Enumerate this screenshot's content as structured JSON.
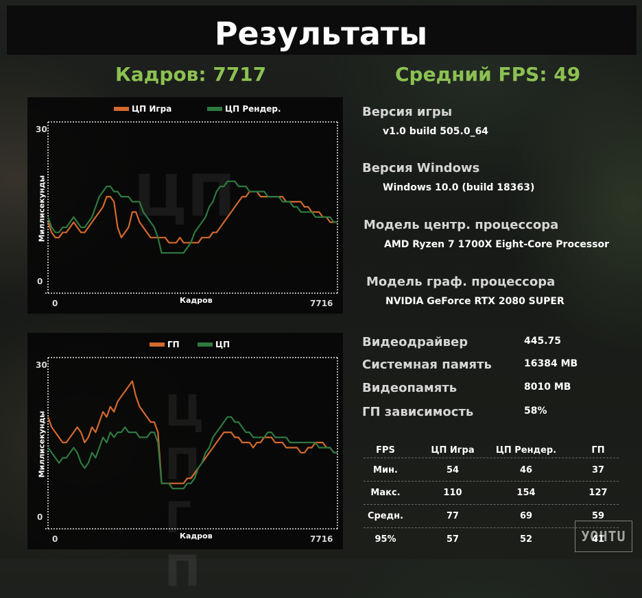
{
  "title": "Результаты",
  "frames_stat": "Кадров: 7717",
  "avg_fps_stat": "Средний FPS: 49",
  "colors": {
    "orange": "#d4692e",
    "green": "#2e7a40",
    "accent": "#8cc152"
  },
  "chart_data": [
    {
      "type": "line",
      "watermark": "ЦП",
      "xlabel": "Кадров",
      "ylabel": "Миллисекунды",
      "x_ticks": [
        "0",
        "7716"
      ],
      "y_ticks": [
        "0",
        "30"
      ],
      "ylim": [
        0,
        30
      ],
      "xlim": [
        0,
        7716
      ],
      "series": [
        {
          "name": "ЦП Игра",
          "color": "#d4692e",
          "values": [
            12,
            10,
            9,
            9,
            10,
            10,
            11,
            12,
            11,
            10,
            10,
            11,
            12,
            13,
            14,
            15,
            17,
            17,
            16,
            11,
            9,
            10,
            11,
            14,
            14,
            12,
            11,
            10,
            9,
            9,
            9,
            9,
            9,
            8,
            8,
            8,
            9,
            8,
            8,
            8,
            8,
            8,
            9,
            9,
            9,
            10,
            10,
            11,
            12,
            13,
            14,
            15,
            16,
            17,
            17,
            18,
            18,
            18,
            17,
            17,
            17,
            17,
            17,
            17,
            17,
            16,
            16,
            16,
            16,
            16,
            15,
            15,
            14,
            14,
            14,
            13,
            13,
            12,
            12,
            12
          ]
        },
        {
          "name": "ЦП Рендер.",
          "color": "#2e7a40",
          "values": [
            13,
            11,
            10,
            10,
            11,
            11,
            12,
            13,
            12,
            11,
            11,
            12,
            13,
            15,
            17,
            18,
            19,
            19,
            18,
            18,
            17,
            17,
            17,
            16,
            16,
            16,
            14,
            13,
            12,
            11,
            9,
            6,
            6,
            6,
            6,
            6,
            6,
            6,
            7,
            8,
            10,
            11,
            12,
            13,
            15,
            16,
            18,
            19,
            19,
            20,
            20,
            20,
            19,
            19,
            19,
            18,
            18,
            18,
            18,
            18,
            17,
            17,
            17,
            17,
            16,
            16,
            16,
            15,
            15,
            14,
            14,
            14,
            14,
            13,
            13,
            13,
            13,
            13,
            12,
            12
          ]
        }
      ]
    },
    {
      "type": "line",
      "watermark": "ЦП ГП",
      "xlabel": "Кадров",
      "ylabel": "Миллисекунды",
      "x_ticks": [
        "0",
        "7716"
      ],
      "y_ticks": [
        "0",
        "30"
      ],
      "ylim": [
        0,
        30
      ],
      "xlim": [
        0,
        7716
      ],
      "series": [
        {
          "name": "ГП",
          "color": "#d4692e",
          "values": [
            20,
            18,
            17,
            16,
            15,
            15,
            16,
            17,
            18,
            17,
            15,
            16,
            18,
            17,
            19,
            21,
            20,
            22,
            21,
            23,
            24,
            25,
            26,
            27,
            24,
            22,
            21,
            20,
            19,
            19,
            17,
            7,
            7,
            7,
            7,
            7,
            7,
            7,
            8,
            8,
            9,
            10,
            11,
            12,
            13,
            14,
            15,
            16,
            17,
            17,
            17,
            16,
            16,
            15,
            15,
            15,
            14,
            15,
            15,
            16,
            16,
            16,
            15,
            15,
            15,
            14,
            14,
            14,
            14,
            13,
            13,
            14,
            14,
            15,
            15,
            15,
            14,
            14,
            13,
            13
          ]
        },
        {
          "name": "ЦП",
          "color": "#2e7a40",
          "values": [
            14,
            13,
            12,
            11,
            12,
            12,
            13,
            14,
            13,
            11,
            10,
            11,
            13,
            12,
            14,
            16,
            15,
            17,
            16,
            17,
            17,
            18,
            17,
            17,
            17,
            16,
            16,
            16,
            17,
            17,
            15,
            7,
            7,
            7,
            6,
            6,
            6,
            6,
            7,
            7,
            8,
            10,
            11,
            13,
            14,
            16,
            17,
            18,
            19,
            20,
            20,
            19,
            19,
            18,
            17,
            17,
            16,
            16,
            16,
            16,
            17,
            17,
            16,
            16,
            16,
            16,
            15,
            15,
            15,
            15,
            15,
            15,
            15,
            15,
            14,
            14,
            14,
            14,
            13,
            13
          ]
        }
      ]
    }
  ],
  "info": {
    "game_version_label": "Версия игры",
    "game_version": "v1.0 build 505.0_64",
    "windows_version_label": "Версия Windows",
    "windows_version": "Windows 10.0 (build 18363)",
    "cpu_label": "Модель центр. процессора",
    "cpu": "AMD Ryzen 7 1700X Eight-Core Processor",
    "gpu_label": "Модель граф. процессора",
    "gpu": "NVIDIA GeForce RTX 2080 SUPER",
    "driver_label": "Видеодрайвер",
    "driver": "445.75",
    "ram_label": "Системная память",
    "ram": "16384 MB",
    "vram_label": "Видеопамять",
    "vram": "8010 MB",
    "gpu_bound_label": "ГП зависимость",
    "gpu_bound": "58%"
  },
  "fps_table": {
    "headers": [
      "FPS",
      "ЦП Игра",
      "ЦП Рендер.",
      "ГП"
    ],
    "rows": [
      [
        "Мин.",
        "54",
        "46",
        "37"
      ],
      [
        "Макс.",
        "110",
        "154",
        "127"
      ],
      [
        "Средн.",
        "77",
        "69",
        "59"
      ],
      [
        "95%",
        "57",
        "52",
        "41"
      ]
    ]
  },
  "logo": "УОНТU"
}
